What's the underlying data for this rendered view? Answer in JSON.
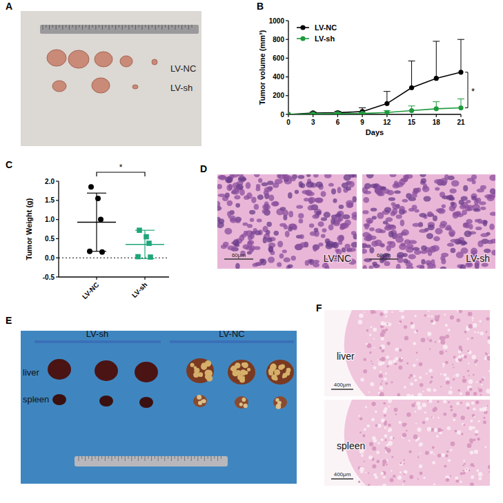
{
  "chart_data": [
    {
      "type": "line",
      "x_label": "Days",
      "y_label": "Tumor volume (mm³)",
      "x": [
        0,
        3,
        6,
        9,
        12,
        15,
        18,
        21
      ],
      "xlim": [
        0,
        21
      ],
      "xticks": [
        0,
        3,
        6,
        9,
        12,
        15,
        18,
        21
      ],
      "ylim": [
        0,
        1000
      ],
      "yticks": [
        0,
        200,
        400,
        600,
        800,
        1000
      ],
      "legend": "top-left",
      "annotation": "*",
      "series": [
        {
          "name": "LV-NC",
          "color": "#000000",
          "marker": "circle",
          "values": [
            0,
            15,
            18,
            30,
            115,
            285,
            385,
            450
          ],
          "errors": [
            0,
            10,
            15,
            40,
            130,
            285,
            395,
            350
          ]
        },
        {
          "name": "LV-sh",
          "color": "#1e9a3c",
          "marker": "circle",
          "values": [
            0,
            5,
            8,
            10,
            20,
            40,
            60,
            70
          ],
          "errors": [
            0,
            5,
            8,
            10,
            20,
            50,
            75,
            95
          ]
        }
      ]
    },
    {
      "type": "scatter",
      "y_label": "Tumor Weight (g)",
      "categories": [
        "LV-NC",
        "LV-sh"
      ],
      "ylim": [
        -0.5,
        2.0
      ],
      "yticks": [
        -0.5,
        {
          "value": 0,
          "label": "0.0"
        },
        0.5,
        {
          "value": 1,
          "label": "1.0"
        },
        1.5,
        {
          "value": 2,
          "label": "2.0"
        }
      ],
      "annotation": "*",
      "groups": [
        {
          "color": "#000000",
          "marker": "circle",
          "values": [
            1.85,
            1.55,
            1.0,
            0.17,
            0.15
          ],
          "mean": 0.93,
          "sd": 0.76
        },
        {
          "color": "#1fa67a",
          "marker": "square",
          "values": [
            0.72,
            0.55,
            0.38,
            0.03,
            0.02
          ],
          "mean": 0.35,
          "sd": 0.37
        }
      ]
    }
  ],
  "figure": {
    "panel_labels": [
      "A",
      "B",
      "C",
      "D",
      "E",
      "F"
    ],
    "A": {
      "labels": [
        "LV-NC",
        "LV-sh"
      ]
    },
    "D": {
      "labels": [
        "LV-NC",
        "LV-sh"
      ],
      "scale_bar": "60μm"
    },
    "E": {
      "groups": [
        "LV-sh",
        "LV-NC"
      ],
      "rows": [
        "liver",
        "spleen"
      ]
    },
    "F": {
      "rows": [
        "liver",
        "spleen"
      ],
      "scale_bar": "400μm"
    }
  }
}
